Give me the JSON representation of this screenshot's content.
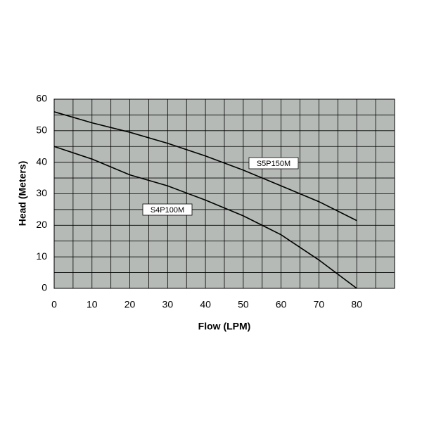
{
  "chart_data": {
    "type": "line",
    "x_label": "Flow (LPM)",
    "y_label": "Head (Meters)",
    "x": [
      0,
      10,
      20,
      30,
      40,
      50,
      60,
      70,
      80
    ],
    "series": [
      {
        "name": "S5P150M",
        "color": "#000000",
        "values": [
          56,
          52.5,
          49.5,
          46,
          42,
          37.5,
          32.5,
          27.5,
          21.5
        ]
      },
      {
        "name": "S4P100M",
        "color": "#000000",
        "values": [
          45,
          41,
          36,
          32.5,
          28,
          23,
          17,
          9,
          0
        ]
      }
    ],
    "xlim": [
      0,
      90
    ],
    "xticks": [
      0,
      10,
      20,
      30,
      40,
      50,
      60,
      70,
      80
    ],
    "x_minor_ticks": [
      5,
      15,
      25,
      35,
      45,
      55,
      65,
      75,
      85
    ],
    "ylim": [
      0,
      60
    ],
    "yticks": [
      0,
      10,
      20,
      30,
      40,
      50,
      60
    ],
    "y_minor_ticks": [
      5,
      15,
      25,
      35,
      45,
      55
    ],
    "grid": true,
    "plot_background": "#b5bab6"
  }
}
